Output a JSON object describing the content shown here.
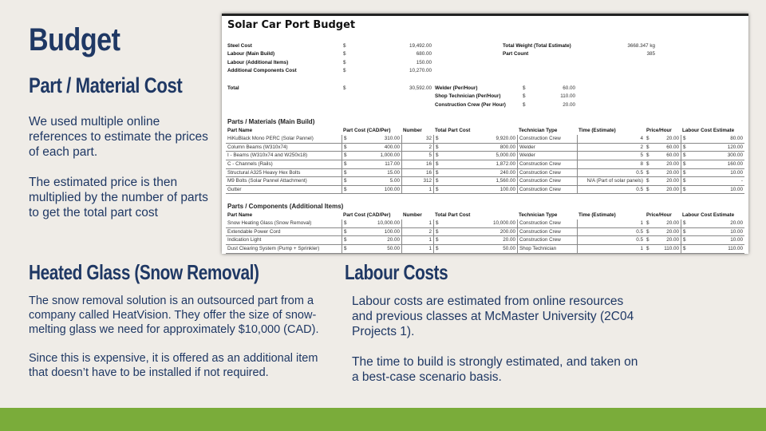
{
  "slide": {
    "title": "Budget",
    "subtitle": "Part / Material Cost",
    "left_paragraphs": [
      "We used multiple online references to estimate the prices of each part.",
      "The estimated price is then multiplied by the number of parts to get the total part cost"
    ],
    "glass": {
      "heading": "Heated Glass (Snow Removal)",
      "paragraphs": [
        "The snow removal solution is an outsourced part from a company called HeatVision. They offer the size of snow-melting glass we need for approximately $10,000 (CAD).",
        "Since this is expensive, it is offered as an additional item that doesn’t have to be installed if not required."
      ]
    },
    "labour": {
      "heading": "Labour Costs",
      "paragraphs": [
        "Labour costs are estimated from online resources and previous classes at McMaster University (2C04 Projects 1).",
        "The time to build is strongly estimated, and taken on a best-case scenario basis."
      ]
    },
    "colors": {
      "heading": "#1f3864",
      "footer": "#7aac3a",
      "background": "#efece7"
    }
  },
  "sheet": {
    "title": "Solar Car Port Budget",
    "summary": [
      {
        "label": "Steel Cost",
        "cur": "$",
        "value": "19,492.00",
        "label2": "Total Weight (Total Estimate)",
        "value2": "3668.347 kg"
      },
      {
        "label": "Labour (Main Build)",
        "cur": "$",
        "value": "680.00",
        "label2": "Part Count",
        "value2": "385"
      },
      {
        "label": "Labour (Additional Items)",
        "cur": "$",
        "value": "150.00"
      },
      {
        "label": "Additional Components Cost",
        "cur": "$",
        "value": "10,270.00"
      }
    ],
    "total": {
      "label": "Total",
      "cur": "$",
      "value": "30,592.00"
    },
    "rates": [
      {
        "label": "Welder (Per/Hour)",
        "cur": "$",
        "value": "60.00"
      },
      {
        "label": "Shop Technician (Per/Hour)",
        "cur": "$",
        "value": "110.00"
      },
      {
        "label": "Construction Crew (Per Hour)",
        "cur": "$",
        "value": "20.00"
      }
    ],
    "headers": [
      "Part Name",
      "Part Cost (CAD/Per)",
      "Number",
      "Total Part Cost",
      "Technician Type",
      "Time (Estimate)",
      "Price/Hour",
      "Labour Cost Estimate"
    ],
    "main_build": {
      "heading": "Parts / Materials (Main Build)",
      "rows": [
        [
          "HiKuBlack Mono PERC (Solar Pannel)",
          "310.00",
          "32",
          "9,920.00",
          "Construction Crew",
          "4",
          "20.00",
          "80.00"
        ],
        [
          "Column Beams (W310x74)",
          "400.00",
          "2",
          "800.00",
          "Welder",
          "2",
          "60.00",
          "120.00"
        ],
        [
          "I - Beams (W310x74 and W250x18)",
          "1,000.00",
          "5",
          "5,000.00",
          "Welder",
          "5",
          "60.00",
          "300.00"
        ],
        [
          "C - Channels (Rails)",
          "117.00",
          "16",
          "1,872.00",
          "Construction Crew",
          "8",
          "20.00",
          "160.00"
        ],
        [
          "Structural A325 Heavy Hex Bolts",
          "15.00",
          "16",
          "240.00",
          "Construction Crew",
          "0.5",
          "20.00",
          "10.00"
        ],
        [
          "M9 Bolts (Solar Pannel Attachment)",
          "5.00",
          "312",
          "1,560.00",
          "Construction Crew",
          "N/A (Part of solar panels)",
          "20.00",
          "-"
        ],
        [
          "Gutter",
          "100.00",
          "1",
          "100.00",
          "Construction Crew",
          "0.5",
          "20.00",
          "10.00"
        ]
      ]
    },
    "additional": {
      "heading": "Parts / Components (Additional Items)",
      "rows": [
        [
          "Snow Heating Glass (Snow Removal)",
          "10,000.00",
          "1",
          "10,000.00",
          "Construction Crew",
          "1",
          "20.00",
          "20.00"
        ],
        [
          "Extendable Power Cord",
          "100.00",
          "2",
          "200.00",
          "Construction Crew",
          "0.5",
          "20.00",
          "10.00"
        ],
        [
          "Indication Light",
          "20.00",
          "1",
          "20.00",
          "Construction Crew",
          "0.5",
          "20.00",
          "10.00"
        ],
        [
          "Dust Clearing System (Pump + Sprinkler)",
          "50.00",
          "1",
          "50.00",
          "Shop Technician",
          "1",
          "110.00",
          "110.00"
        ]
      ]
    },
    "currency": "$"
  }
}
